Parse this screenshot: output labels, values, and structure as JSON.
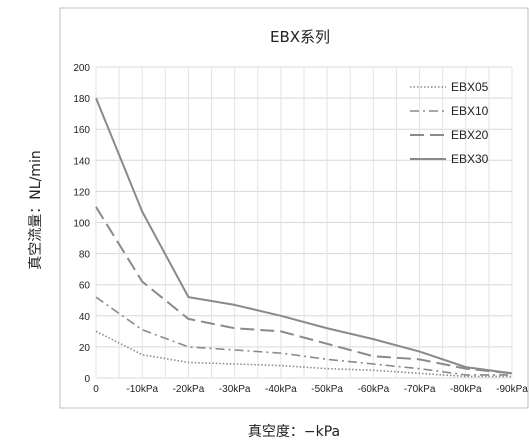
{
  "chart_data": {
    "type": "line",
    "title": "EBX系列",
    "xlabel": "真空度：−kPa",
    "ylabel": "真空流量：NL/min",
    "categories": [
      "0",
      "-10kPa",
      "-20kPa",
      "-30kPa",
      "-40kPa",
      "-50kPa",
      "-60kPa",
      "-70kPa",
      "-80kPa",
      "-90kPa"
    ],
    "ylim": [
      0,
      200
    ],
    "yticks": [
      "0",
      "20",
      "40",
      "60",
      "80",
      "100",
      "120",
      "140",
      "160",
      "180",
      "200"
    ],
    "grid": true,
    "legend_position": "top-right",
    "series": [
      {
        "name": "EBX05",
        "color": "#8a8a8a",
        "dash": "dotted",
        "values": [
          30,
          15,
          10,
          9,
          8,
          6,
          5,
          3,
          1,
          1
        ]
      },
      {
        "name": "EBX10",
        "color": "#8a8a8a",
        "dash": "dashdot",
        "values": [
          52,
          31,
          20,
          18,
          16,
          12,
          9,
          6,
          2,
          2
        ]
      },
      {
        "name": "EBX20",
        "color": "#8a8a8a",
        "dash": "dashed",
        "values": [
          110,
          62,
          38,
          32,
          30,
          22,
          14,
          12,
          6,
          3
        ]
      },
      {
        "name": "EBX30",
        "color": "#8a8a8a",
        "dash": "solid",
        "values": [
          180,
          107,
          52,
          47,
          40,
          32,
          25,
          17,
          7,
          3
        ]
      }
    ]
  }
}
